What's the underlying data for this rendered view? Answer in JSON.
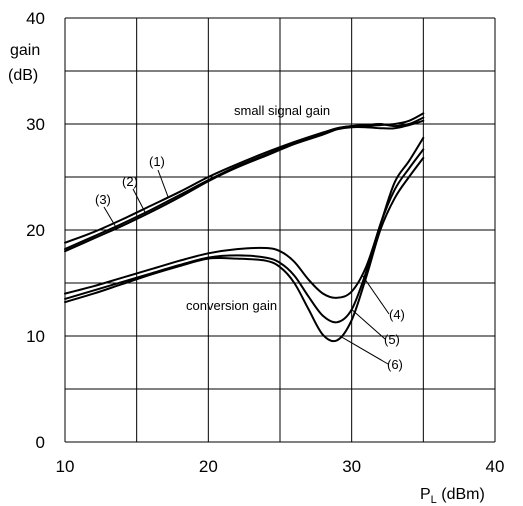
{
  "chart_data": {
    "type": "line",
    "title": "",
    "ylabel_line1": "gain",
    "ylabel_line2": "(dB)",
    "xlabel_main": "P",
    "xlabel_sub": "L",
    "xlabel_unit": " (dBm)",
    "xlim": [
      10,
      40
    ],
    "ylim": [
      0,
      40
    ],
    "xgrid": [
      10,
      15,
      20,
      25,
      30,
      35,
      40
    ],
    "ygrid": [
      0,
      5,
      10,
      15,
      20,
      25,
      30,
      35,
      40
    ],
    "xticks": [
      10,
      20,
      30,
      40
    ],
    "yticks": [
      0,
      10,
      20,
      30,
      40
    ],
    "grid": true,
    "annotations": [
      {
        "text": "small signal gain",
        "x": 27.3,
        "y": 31.2
      },
      {
        "text": "conversion gain",
        "x": 18.0,
        "y": 12.8
      }
    ],
    "series": [
      {
        "name": "(1)",
        "group": "small signal gain",
        "x": [
          10,
          12,
          14,
          16,
          18,
          20,
          22,
          24,
          26,
          28,
          29,
          30,
          31,
          32,
          33,
          34,
          35
        ],
        "y": [
          18.8,
          19.8,
          21.0,
          22.3,
          23.6,
          25.0,
          26.2,
          27.3,
          28.3,
          29.2,
          29.6,
          29.8,
          29.8,
          29.9,
          30.0,
          30.3,
          31.0
        ]
      },
      {
        "name": "(2)",
        "group": "small signal gain",
        "x": [
          10,
          12,
          14,
          16,
          18,
          20,
          22,
          24,
          26,
          28,
          29,
          30,
          31,
          32,
          33,
          34,
          35
        ],
        "y": [
          18.2,
          19.4,
          20.6,
          21.9,
          23.3,
          24.7,
          26.0,
          27.1,
          28.2,
          29.1,
          29.6,
          29.8,
          29.9,
          30.0,
          29.8,
          30.0,
          30.6
        ]
      },
      {
        "name": "(3)",
        "group": "small signal gain",
        "x": [
          10,
          12,
          14,
          16,
          18,
          20,
          22,
          24,
          26,
          28,
          29,
          30,
          31,
          32,
          33,
          34,
          35
        ],
        "y": [
          18.0,
          19.2,
          20.4,
          21.7,
          23.1,
          24.6,
          25.9,
          27.0,
          28.1,
          29.0,
          29.5,
          29.7,
          29.7,
          29.6,
          29.6,
          29.9,
          30.3
        ]
      },
      {
        "name": "(4)",
        "group": "conversion gain",
        "x": [
          10,
          12,
          14,
          16,
          18,
          20,
          22,
          24,
          25,
          26,
          27,
          28,
          29,
          30,
          31,
          32,
          33,
          34,
          35
        ],
        "y": [
          14.0,
          14.7,
          15.5,
          16.3,
          17.1,
          17.8,
          18.2,
          18.3,
          18.0,
          17.0,
          15.3,
          14.0,
          13.6,
          14.2,
          16.5,
          20.5,
          24.5,
          26.5,
          28.7
        ]
      },
      {
        "name": "(5)",
        "group": "conversion gain",
        "x": [
          10,
          12,
          14,
          16,
          18,
          20,
          22,
          24,
          25,
          26,
          27,
          28,
          29,
          30,
          31,
          32,
          33,
          34,
          35
        ],
        "y": [
          13.5,
          14.3,
          15.1,
          15.9,
          16.7,
          17.4,
          17.6,
          17.4,
          16.9,
          15.7,
          13.7,
          11.9,
          11.3,
          12.5,
          16.0,
          20.5,
          23.8,
          25.8,
          27.6
        ]
      },
      {
        "name": "(6)",
        "group": "conversion gain",
        "x": [
          10,
          12,
          14,
          16,
          18,
          20,
          22,
          24,
          25,
          26,
          27,
          28,
          29,
          30,
          31,
          32,
          33,
          34,
          35
        ],
        "y": [
          13.2,
          14.0,
          14.9,
          15.8,
          16.6,
          17.3,
          17.3,
          17.1,
          16.5,
          15.0,
          12.5,
          10.1,
          9.6,
          11.5,
          15.5,
          20.0,
          23.0,
          25.0,
          26.8
        ]
      }
    ]
  }
}
